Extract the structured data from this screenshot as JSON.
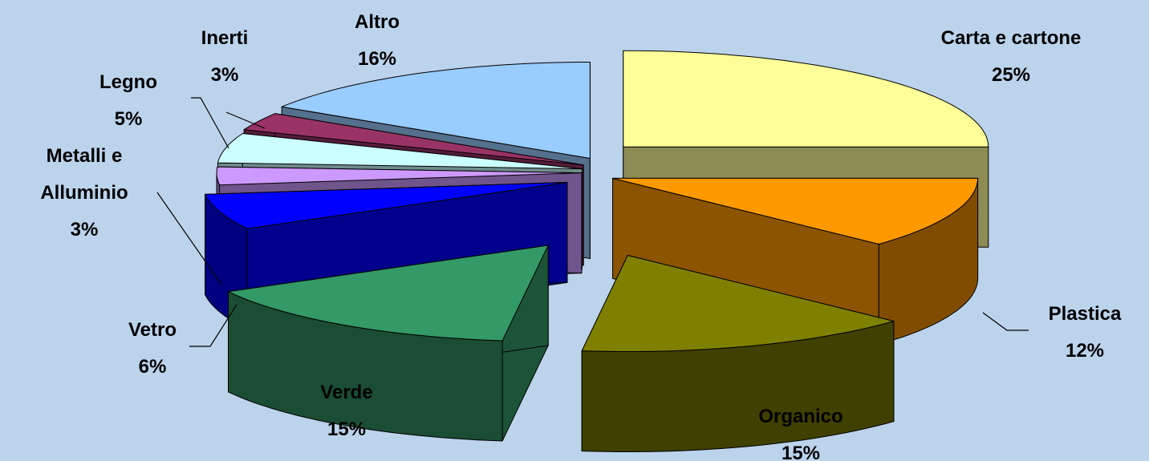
{
  "chart_data": {
    "type": "pie3d",
    "categories": [
      "Carta e cartone",
      "Plastica",
      "Organico",
      "Verde",
      "Vetro",
      "Metalli e Alluminio",
      "Legno",
      "Inerti",
      "Altro"
    ],
    "values": [
      25,
      12,
      15,
      15,
      6,
      3,
      5,
      3,
      16
    ],
    "value_labels": [
      "25%",
      "12%",
      "15%",
      "15%",
      "6%",
      "3%",
      "5%",
      "3%",
      "16%"
    ],
    "colors": [
      "#ffff99",
      "#ff9900",
      "#808000",
      "#339966",
      "#0000ff",
      "#cc99ff",
      "#ccffff",
      "#993366",
      "#99ccff"
    ]
  }
}
